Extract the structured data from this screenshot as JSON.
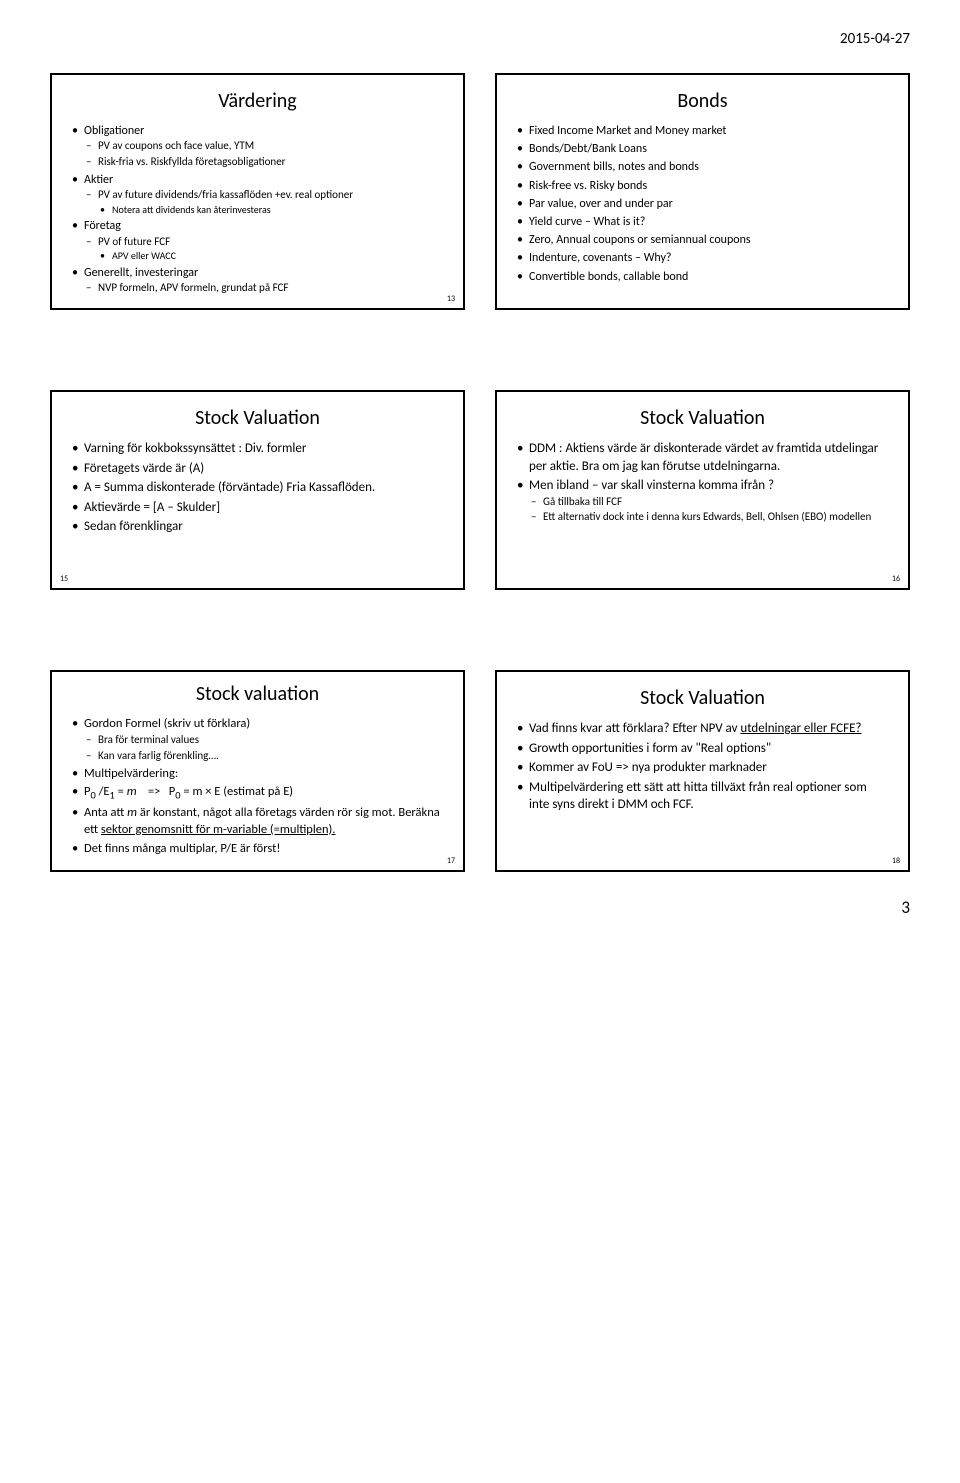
{
  "header": {
    "date": "2015-04-27"
  },
  "footer": {
    "page_num": "3"
  },
  "slides": [
    {
      "title": "Värdering",
      "num": "13",
      "num_pos": "br",
      "items": [
        {
          "text": "Obligationer",
          "sub": [
            {
              "text": "PV av coupons och face value, YTM"
            },
            {
              "text": "Risk-fria vs. Riskfyllda företagsobligationer"
            }
          ]
        },
        {
          "text": "Aktier",
          "sub": [
            {
              "text": "PV av future dividends/fria kassaflöden +ev. real optioner",
              "sub2": [
                {
                  "text": "Notera att dividends kan återinvesteras"
                }
              ]
            }
          ]
        },
        {
          "text": "Företag",
          "sub": [
            {
              "text": "PV of future FCF",
              "sub2": [
                {
                  "text": "APV eller WACC"
                }
              ]
            }
          ]
        },
        {
          "text": "Generellt, investeringar",
          "sub": [
            {
              "text": "NVP formeln, APV formeln, grundat på FCF"
            }
          ]
        }
      ]
    },
    {
      "title": "Bonds",
      "num": "",
      "num_pos": "",
      "items": [
        {
          "text": "Fixed Income Market and Money market"
        },
        {
          "text": "Bonds/Debt/Bank Loans"
        },
        {
          "text": "Government bills, notes and bonds"
        },
        {
          "text": "Risk-free vs. Risky bonds"
        },
        {
          "text": "Par value, over and under par"
        },
        {
          "text": "Yield curve – What is it?"
        },
        {
          "text": "Zero, Annual coupons or semiannual coupons"
        },
        {
          "text": "Indenture, covenants – Why?"
        },
        {
          "text": "Convertible bonds, callable bond"
        }
      ]
    },
    {
      "title": "Stock Valuation",
      "num": "15",
      "num_pos": "bl",
      "items": [
        {
          "text": "Varning för kokbokssynsättet : Div. formler"
        },
        {
          "text": "Företagets värde är (A)"
        },
        {
          "text": "A = Summa diskonterade (förväntade) Fria Kassaflöden."
        },
        {
          "text": "Aktievärde = [A – Skulder]"
        },
        {
          "text": "Sedan förenklingar"
        }
      ]
    },
    {
      "title": "Stock Valuation",
      "num": "16",
      "num_pos": "br",
      "items": [
        {
          "text": "DDM : Aktiens värde är diskonterade värdet av framtida utdelingar per aktie. Bra om jag kan förutse utdelningarna."
        },
        {
          "text": "Men ibland – var skall vinsterna komma ifrån ?",
          "sub": [
            {
              "text": "Gå tillbaka till FCF"
            },
            {
              "text": "Ett alternativ dock inte i denna kurs Edwards, Bell, Ohlsen (EBO) modellen"
            }
          ]
        }
      ]
    },
    {
      "title": "Stock valuation",
      "num": "17",
      "num_pos": "br",
      "title_offset": true,
      "items": [
        {
          "text": "Gordon Formel (skriv ut förklara)",
          "sub": [
            {
              "text": "Bra för terminal values"
            },
            {
              "text": "Kan vara farlig förenkling…."
            }
          ]
        },
        {
          "text": "Multipelvärdering:"
        },
        {
          "html": "P<sub>0</sub> /E<sub>1</sub> = <span class=\"italic\">m</span>&nbsp;&nbsp;&nbsp;&nbsp;=&gt;&nbsp;&nbsp;&nbsp;P<sub>0</sub> = m × E (estimat på E)"
        },
        {
          "html": "Anta att <span class=\"italic\">m</span> är konstant, något alla företags värden rör sig mot. Beräkna  ett <span class=\"underline\">sektor genomsnitt för m-variable (=multiplen).</span>"
        },
        {
          "text": "Det finns många multiplar, P/E är först!"
        }
      ]
    },
    {
      "title": "Stock Valuation",
      "num": "18",
      "num_pos": "br",
      "items": [
        {
          "html": "Vad finns kvar att förklara? Efter NPV av <span class=\"underline\">utdelningar eller FCFE?</span>"
        },
        {
          "text": "Growth opportunities i form av \"Real options\""
        },
        {
          "text": "Kommer av FoU => nya produkter marknader"
        },
        {
          "text": "Multipelvärdering ett sätt att hitta tillväxt från real optioner som inte syns direkt i DMM och FCF."
        }
      ]
    }
  ]
}
